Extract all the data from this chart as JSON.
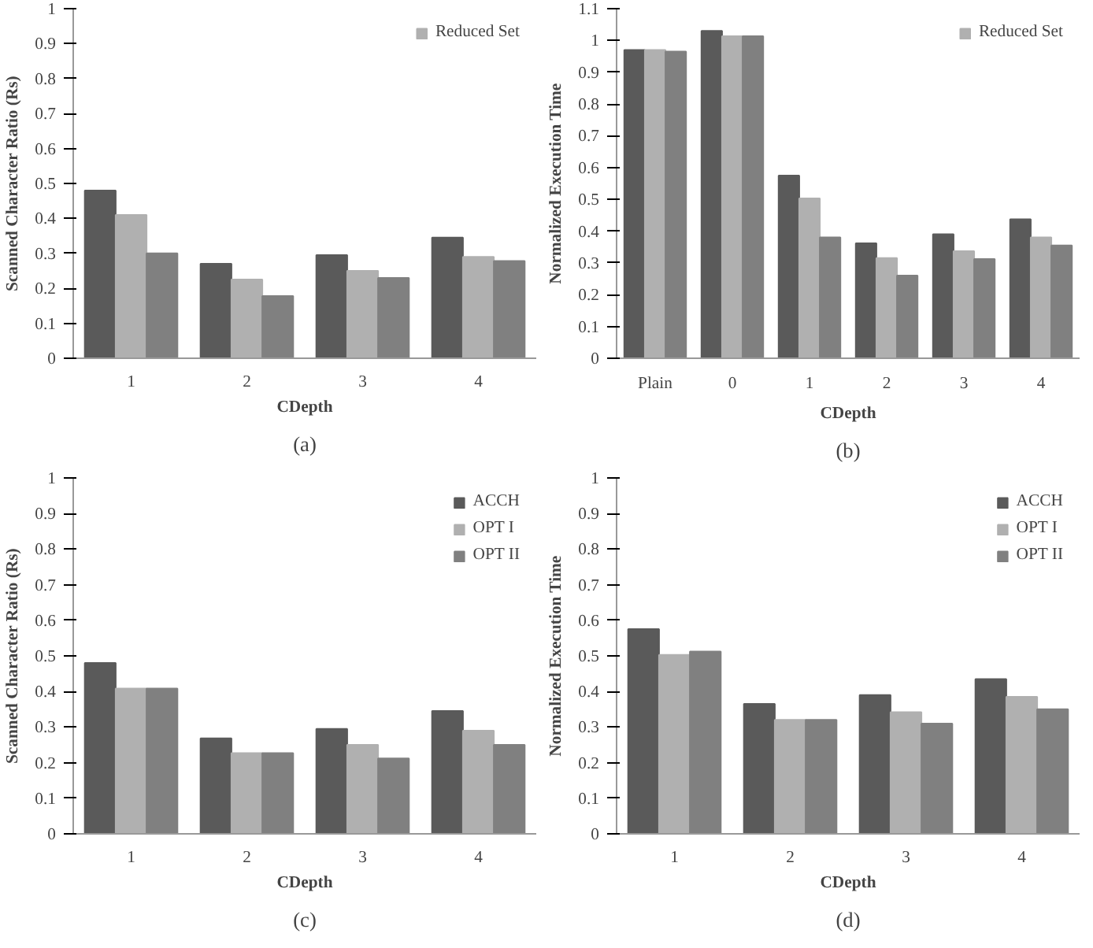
{
  "chart_data": [
    {
      "type": "bar",
      "categories": [
        "1",
        "2",
        "3",
        "4"
      ],
      "xlabel": "CDepth",
      "ylabel": "Scanned Character Ratio (Rs)",
      "ylim": [
        0,
        1
      ],
      "yticks": [
        0,
        0.1,
        0.2,
        0.3,
        0.4,
        0.5,
        0.6,
        0.7,
        0.8,
        0.9,
        1
      ],
      "grid": false,
      "legend": "top right",
      "annotations": [
        "(a)"
      ],
      "series": [
        {
          "color": "#5a5a5a",
          "values": [
            0.48,
            0.27,
            0.295,
            0.345
          ]
        },
        {
          "name": "Reduced Set",
          "color": "#b0b0b0",
          "values": [
            0.41,
            0.225,
            0.25,
            0.29
          ]
        },
        {
          "color": "#808080",
          "values": [
            0.3,
            0.178,
            0.23,
            0.278
          ]
        }
      ]
    },
    {
      "type": "bar",
      "categories": [
        "Plain",
        "0",
        "1",
        "2",
        "3",
        "4"
      ],
      "xlabel": "CDepth",
      "ylabel": "Normalized Execution Time",
      "ylim": [
        0,
        1.1
      ],
      "yticks": [
        0,
        0.1,
        0.2,
        0.3,
        0.4,
        0.5,
        0.6,
        0.7,
        0.8,
        0.9,
        1,
        1.1
      ],
      "grid": false,
      "legend": "top right",
      "annotations": [
        "(b)"
      ],
      "series": [
        {
          "color": "#5a5a5a",
          "values": [
            0.97,
            1.03,
            0.575,
            0.362,
            0.39,
            0.437
          ]
        },
        {
          "name": "Reduced Set",
          "color": "#b0b0b0",
          "values": [
            0.97,
            1.013,
            0.503,
            0.315,
            0.337,
            0.38
          ]
        },
        {
          "color": "#808080",
          "values": [
            0.965,
            1.013,
            0.38,
            0.26,
            0.312,
            0.355
          ]
        }
      ]
    },
    {
      "type": "bar",
      "categories": [
        "1",
        "2",
        "3",
        "4"
      ],
      "xlabel": "CDepth",
      "ylabel": "Scanned Character Ratio (Rs)",
      "ylim": [
        0,
        1
      ],
      "yticks": [
        0,
        0.1,
        0.2,
        0.3,
        0.4,
        0.5,
        0.6,
        0.7,
        0.8,
        0.9,
        1
      ],
      "grid": false,
      "legend": "top right",
      "annotations": [
        "(c)"
      ],
      "series": [
        {
          "name": "ACCH",
          "color": "#5a5a5a",
          "values": [
            0.48,
            0.268,
            0.295,
            0.345
          ]
        },
        {
          "name": "OPT I",
          "color": "#b0b0b0",
          "values": [
            0.408,
            0.227,
            0.25,
            0.29
          ]
        },
        {
          "name": "OPT II",
          "color": "#808080",
          "values": [
            0.408,
            0.227,
            0.212,
            0.25
          ]
        }
      ]
    },
    {
      "type": "bar",
      "categories": [
        "1",
        "2",
        "3",
        "4"
      ],
      "xlabel": "CDepth",
      "ylabel": "Normalized Execution Time",
      "ylim": [
        0,
        1
      ],
      "yticks": [
        0,
        0.1,
        0.2,
        0.3,
        0.4,
        0.5,
        0.6,
        0.7,
        0.8,
        0.9,
        1
      ],
      "grid": false,
      "legend": "top right",
      "annotations": [
        "(d)"
      ],
      "series": [
        {
          "name": "ACCH",
          "color": "#5a5a5a",
          "values": [
            0.575,
            0.365,
            0.39,
            0.435
          ]
        },
        {
          "name": "OPT I",
          "color": "#b0b0b0",
          "values": [
            0.503,
            0.32,
            0.342,
            0.385
          ]
        },
        {
          "name": "OPT II",
          "color": "#808080",
          "values": [
            0.512,
            0.32,
            0.31,
            0.35
          ]
        }
      ]
    }
  ]
}
